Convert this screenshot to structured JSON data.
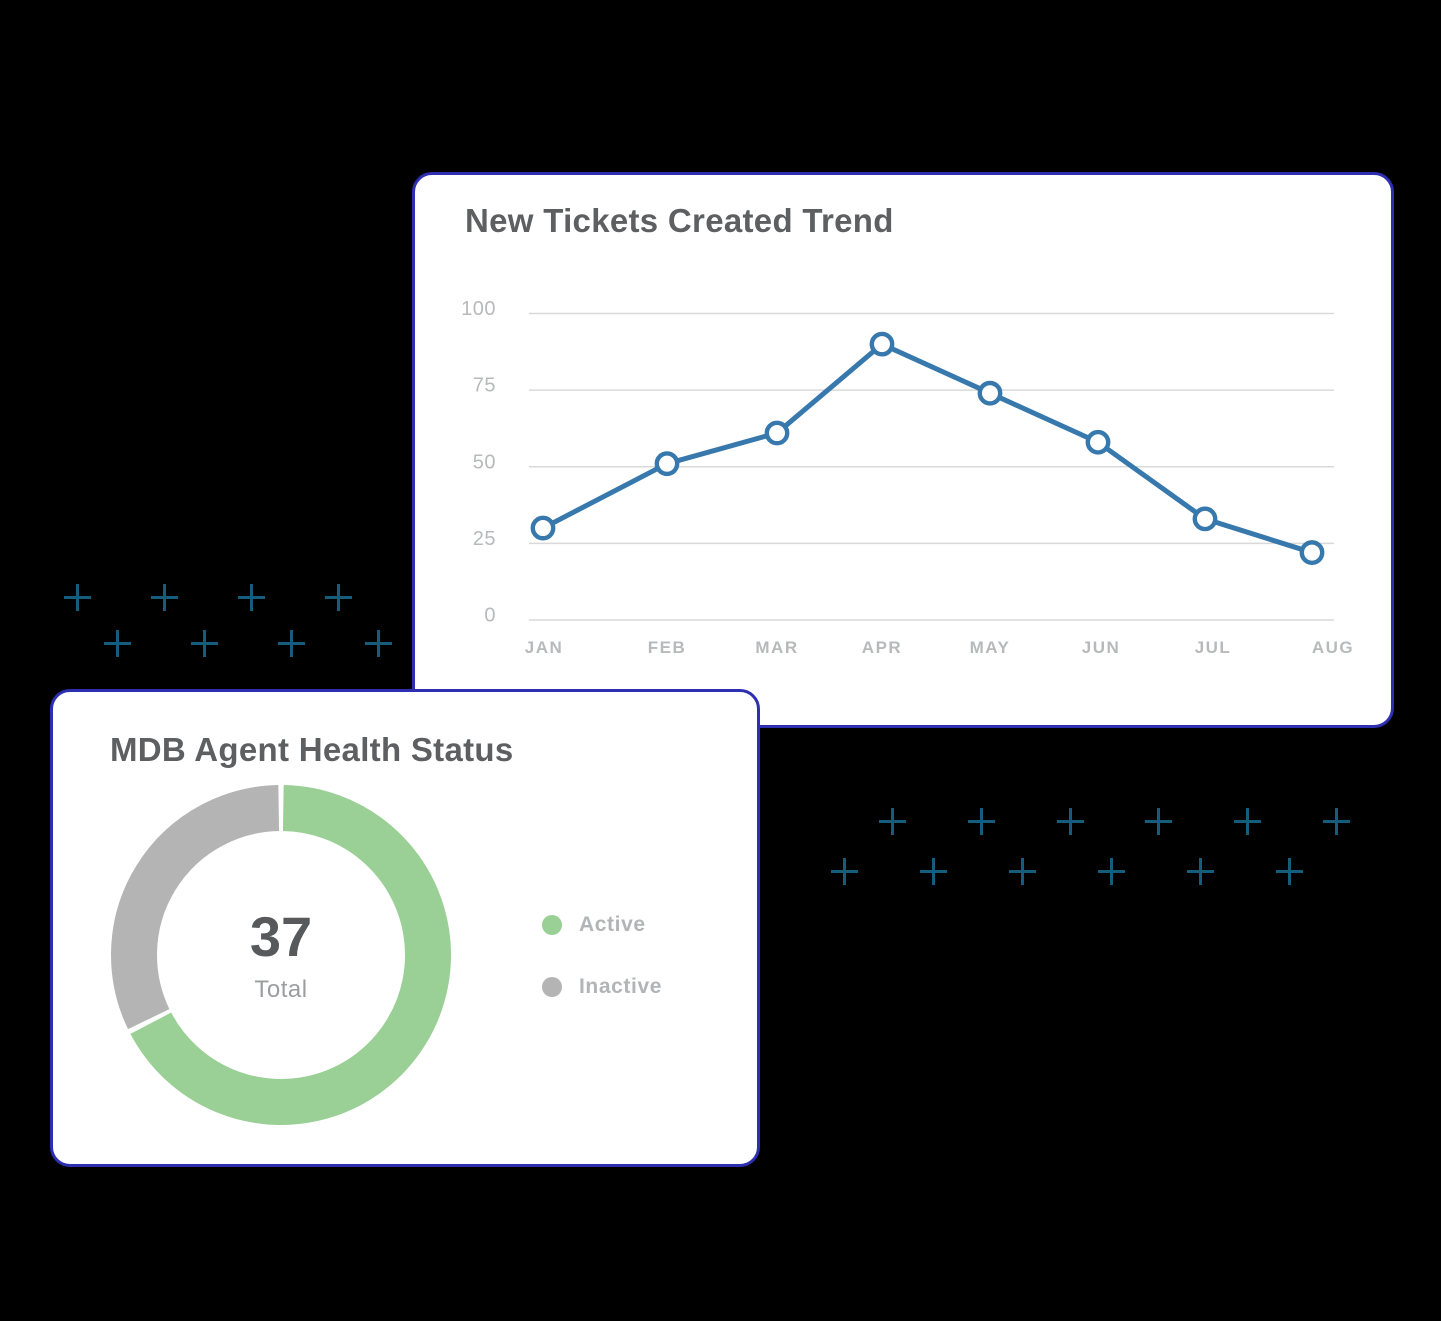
{
  "page": {
    "background": "#000000"
  },
  "cards": {
    "background": "#ffffff",
    "border_color": "#2d2fb0"
  },
  "decorations": {
    "plus_color": "#155d7c"
  },
  "chart_data": [
    {
      "type": "line",
      "title": "New Tickets Created Trend",
      "categories": [
        "JAN",
        "FEB",
        "MAR",
        "APR",
        "MAY",
        "JUN",
        "JUL",
        "AUG"
      ],
      "values": [
        30,
        51,
        61,
        90,
        74,
        58,
        33,
        22
      ],
      "ylim": [
        0,
        100
      ],
      "yticks": [
        0,
        25,
        50,
        75,
        100
      ],
      "xlabel": "",
      "ylabel": "",
      "grid": true,
      "legend_position": "none",
      "line_color": "#3778ad",
      "marker_style": "open-circle",
      "marker_fill": "#ffffff",
      "gridline_color": "#d9d9d9",
      "tick_label_color": "#b7b9bb"
    },
    {
      "type": "donut",
      "title": "MDB Agent Health Status",
      "total": 37,
      "total_label": "Total",
      "slices": [
        {
          "label": "Active",
          "value": 25,
          "color": "#9ad096"
        },
        {
          "label": "Inactive",
          "value": 12,
          "color": "#b4b4b4"
        }
      ],
      "legend_position": "right",
      "center_value_color": "#58595b",
      "center_label_color": "#9b9da0",
      "legend_text_color": "#b2b4b6"
    }
  ]
}
